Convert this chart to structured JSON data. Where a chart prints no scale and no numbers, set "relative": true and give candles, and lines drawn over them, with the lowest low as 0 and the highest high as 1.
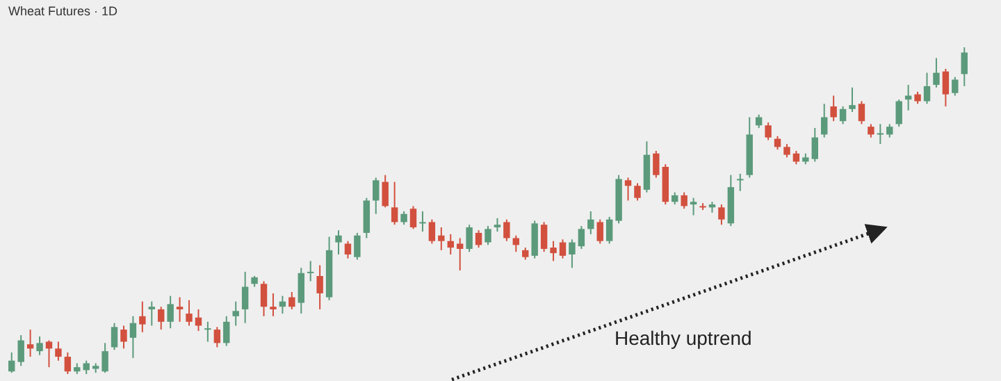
{
  "chart_data": {
    "type": "candlestick",
    "title": "Wheat Futures · 1D",
    "relative": true,
    "annotations": [
      "Healthy uptrend"
    ],
    "categories": [
      null,
      null,
      null,
      null,
      null,
      null,
      null,
      null,
      null,
      null,
      null,
      null,
      null,
      null,
      null,
      null,
      null,
      null,
      null,
      null,
      null,
      null,
      null,
      null,
      null,
      null,
      null,
      null,
      null,
      null,
      null,
      null,
      null,
      null,
      null,
      null,
      null,
      null,
      null,
      null,
      null,
      null,
      null,
      null,
      null,
      null,
      null,
      null,
      null,
      null,
      null,
      null,
      null,
      null,
      null,
      null,
      null,
      null,
      null,
      null,
      null,
      null,
      null,
      null,
      null,
      null,
      null,
      null,
      null,
      null,
      null,
      null,
      null,
      null,
      null,
      null,
      null,
      null,
      null,
      null,
      null,
      null,
      null,
      null,
      null,
      null,
      null,
      null,
      null,
      null,
      null,
      null,
      null,
      null,
      null,
      null,
      null,
      null,
      null,
      null,
      null,
      null,
      null
    ],
    "ohlc": [
      [
        0.008,
        0.066,
        0.004,
        0.041
      ],
      [
        0.037,
        0.119,
        0.025,
        0.103
      ],
      [
        0.091,
        0.136,
        0.053,
        0.078
      ],
      [
        0.07,
        0.115,
        0.058,
        0.095
      ],
      [
        0.099,
        0.103,
        0.021,
        0.078
      ],
      [
        0.078,
        0.099,
        0.041,
        0.053
      ],
      [
        0.053,
        0.066,
        0,
        0.008
      ],
      [
        0.008,
        0.033,
        0,
        0.021
      ],
      [
        0.012,
        0.041,
        0,
        0.033
      ],
      [
        0.016,
        0.033,
        0.004,
        0.025
      ],
      [
        0.008,
        0.095,
        0.004,
        0.07
      ],
      [
        0.082,
        0.156,
        0.074,
        0.144
      ],
      [
        0.136,
        0.148,
        0.078,
        0.099
      ],
      [
        0.111,
        0.177,
        0.049,
        0.156
      ],
      [
        0.177,
        0.222,
        0.128,
        0.152
      ],
      [
        0.198,
        0.222,
        0.148,
        0.206
      ],
      [
        0.198,
        0.206,
        0.136,
        0.16
      ],
      [
        0.16,
        0.239,
        0.14,
        0.214
      ],
      [
        0.206,
        0.235,
        0.16,
        0.198
      ],
      [
        0.185,
        0.226,
        0.148,
        0.16
      ],
      [
        0.173,
        0.198,
        0.132,
        0.148
      ],
      [
        0.136,
        0.16,
        0.099,
        0.14
      ],
      [
        0.136,
        0.144,
        0.082,
        0.095
      ],
      [
        0.095,
        0.177,
        0.086,
        0.16
      ],
      [
        0.177,
        0.222,
        0.148,
        0.193
      ],
      [
        0.198,
        0.313,
        0.156,
        0.267
      ],
      [
        0.276,
        0.3,
        0.267,
        0.296
      ],
      [
        0.276,
        0.284,
        0.177,
        0.206
      ],
      [
        0.206,
        0.247,
        0.177,
        0.198
      ],
      [
        0.206,
        0.239,
        0.185,
        0.222
      ],
      [
        0.235,
        0.251,
        0.198,
        0.206
      ],
      [
        0.218,
        0.325,
        0.185,
        0.309
      ],
      [
        0.309,
        0.346,
        0.284,
        0.313
      ],
      [
        0.3,
        0.333,
        0.198,
        0.247
      ],
      [
        0.235,
        0.42,
        0.226,
        0.379
      ],
      [
        0.403,
        0.44,
        0.366,
        0.424
      ],
      [
        0.399,
        0.407,
        0.354,
        0.366
      ],
      [
        0.358,
        0.432,
        0.35,
        0.424
      ],
      [
        0.432,
        0.539,
        0.416,
        0.531
      ],
      [
        0.531,
        0.601,
        0.49,
        0.593
      ],
      [
        0.588,
        0.609,
        0.51,
        0.514
      ],
      [
        0.51,
        0.588,
        0.457,
        0.465
      ],
      [
        0.465,
        0.498,
        0.457,
        0.49
      ],
      [
        0.506,
        0.514,
        0.444,
        0.449
      ],
      [
        0.461,
        0.498,
        0.436,
        0.465
      ],
      [
        0.465,
        0.473,
        0.399,
        0.407
      ],
      [
        0.424,
        0.449,
        0.379,
        0.407
      ],
      [
        0.407,
        0.428,
        0.366,
        0.387
      ],
      [
        0.399,
        0.416,
        0.317,
        0.383
      ],
      [
        0.383,
        0.457,
        0.374,
        0.449
      ],
      [
        0.432,
        0.44,
        0.387,
        0.395
      ],
      [
        0.403,
        0.453,
        0.395,
        0.444
      ],
      [
        0.449,
        0.477,
        0.436,
        0.457
      ],
      [
        0.465,
        0.473,
        0.407,
        0.416
      ],
      [
        0.416,
        0.424,
        0.374,
        0.395
      ],
      [
        0.379,
        0.387,
        0.35,
        0.358
      ],
      [
        0.362,
        0.469,
        0.354,
        0.461
      ],
      [
        0.457,
        0.465,
        0.374,
        0.383
      ],
      [
        0.387,
        0.407,
        0.346,
        0.37
      ],
      [
        0.403,
        0.412,
        0.354,
        0.362
      ],
      [
        0.366,
        0.412,
        0.325,
        0.403
      ],
      [
        0.391,
        0.453,
        0.383,
        0.444
      ],
      [
        0.444,
        0.498,
        0.428,
        0.473
      ],
      [
        0.465,
        0.473,
        0.399,
        0.407
      ],
      [
        0.407,
        0.481,
        0.399,
        0.473
      ],
      [
        0.469,
        0.609,
        0.461,
        0.597
      ],
      [
        0.593,
        0.601,
        0.531,
        0.576
      ],
      [
        0.576,
        0.584,
        0.531,
        0.539
      ],
      [
        0.564,
        0.712,
        0.556,
        0.671
      ],
      [
        0.675,
        0.683,
        0.601,
        0.609
      ],
      [
        0.634,
        0.642,
        0.519,
        0.527
      ],
      [
        0.527,
        0.556,
        0.519,
        0.547
      ],
      [
        0.547,
        0.556,
        0.506,
        0.514
      ],
      [
        0.519,
        0.539,
        0.486,
        0.527
      ],
      [
        0.514,
        0.523,
        0.502,
        0.51
      ],
      [
        0.51,
        0.527,
        0.494,
        0.519
      ],
      [
        0.51,
        0.519,
        0.457,
        0.473
      ],
      [
        0.461,
        0.609,
        0.453,
        0.572
      ],
      [
        0.593,
        0.613,
        0.56,
        0.597
      ],
      [
        0.609,
        0.786,
        0.601,
        0.733
      ],
      [
        0.761,
        0.794,
        0.753,
        0.786
      ],
      [
        0.761,
        0.77,
        0.716,
        0.724
      ],
      [
        0.72,
        0.728,
        0.687,
        0.695
      ],
      [
        0.695,
        0.704,
        0.663,
        0.671
      ],
      [
        0.675,
        0.683,
        0.642,
        0.65
      ],
      [
        0.65,
        0.675,
        0.642,
        0.663
      ],
      [
        0.658,
        0.753,
        0.65,
        0.724
      ],
      [
        0.733,
        0.827,
        0.724,
        0.786
      ],
      [
        0.819,
        0.852,
        0.774,
        0.786
      ],
      [
        0.774,
        0.819,
        0.765,
        0.811
      ],
      [
        0.811,
        0.877,
        0.802,
        0.823
      ],
      [
        0.827,
        0.835,
        0.765,
        0.774
      ],
      [
        0.757,
        0.765,
        0.724,
        0.733
      ],
      [
        0.733,
        0.765,
        0.704,
        0.737
      ],
      [
        0.733,
        0.765,
        0.724,
        0.757
      ],
      [
        0.765,
        0.84,
        0.757,
        0.835
      ],
      [
        0.84,
        0.885,
        0.807,
        0.852
      ],
      [
        0.856,
        0.864,
        0.827,
        0.835
      ],
      [
        0.835,
        0.922,
        0.827,
        0.881
      ],
      [
        0.885,
        0.967,
        0.877,
        0.922
      ],
      [
        0.926,
        0.934,
        0.819,
        0.856
      ],
      [
        0.86,
        0.909,
        0.852,
        0.901
      ],
      [
        0.918,
        1,
        0.881,
        0.984
      ]
    ]
  }
}
